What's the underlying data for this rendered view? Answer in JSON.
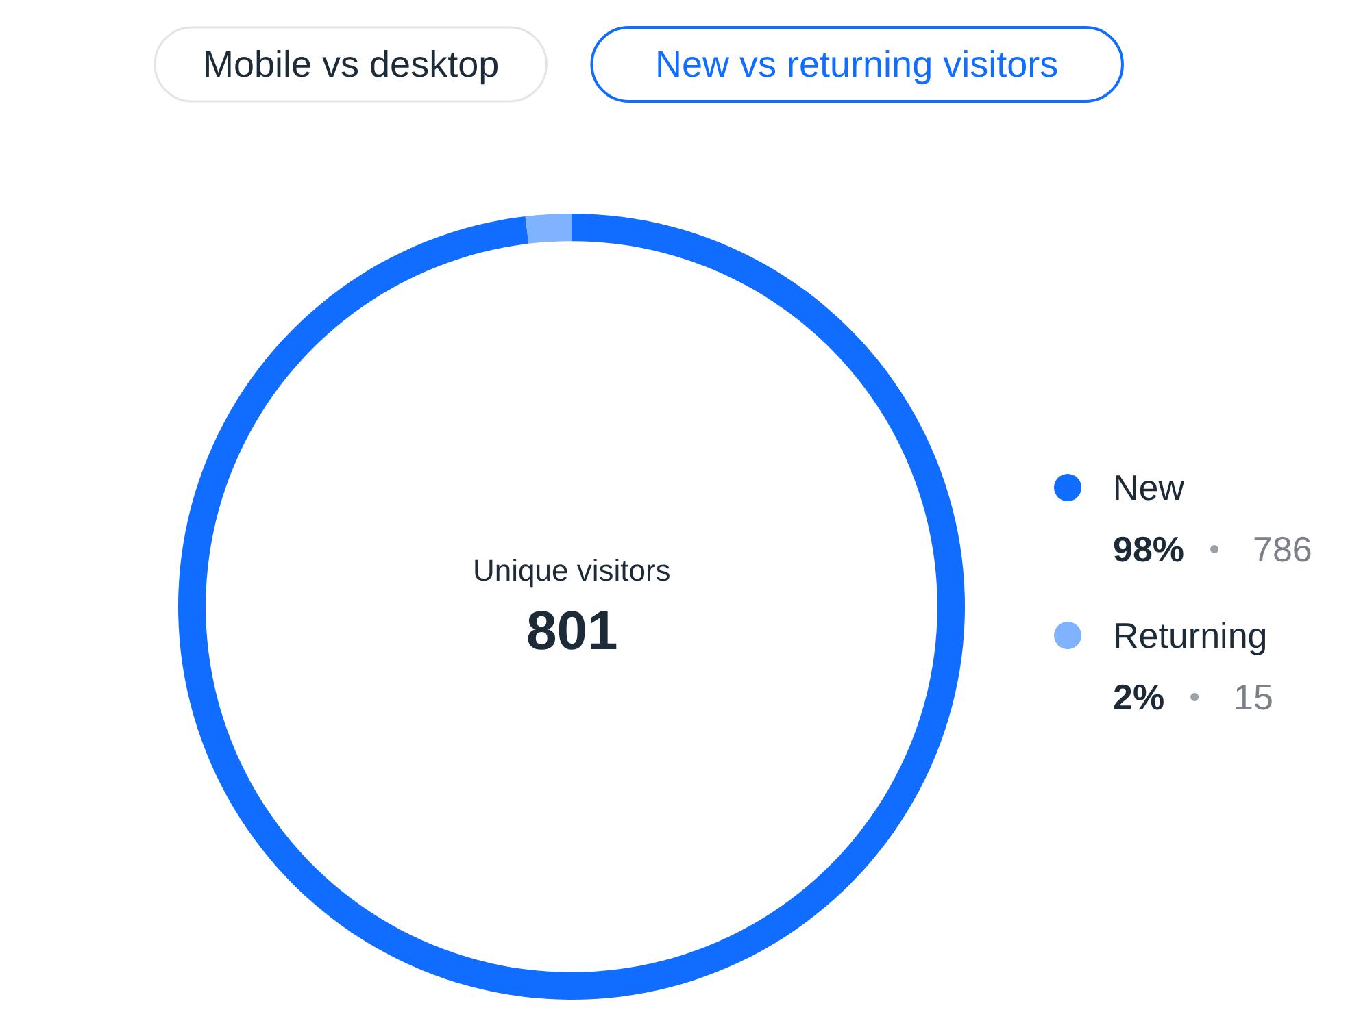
{
  "chart_data": {
    "type": "donut",
    "title": "New vs returning visitors",
    "categories": [
      "New",
      "Returning"
    ],
    "values": [
      786,
      15
    ],
    "colors": [
      "#116dff",
      "#80b3ff"
    ],
    "data_labels": true,
    "legend": "right",
    "annotations": [
      "Mobile vs desktop",
      "Unique visitors",
      "801",
      "98%",
      "2%"
    ]
  }
}
